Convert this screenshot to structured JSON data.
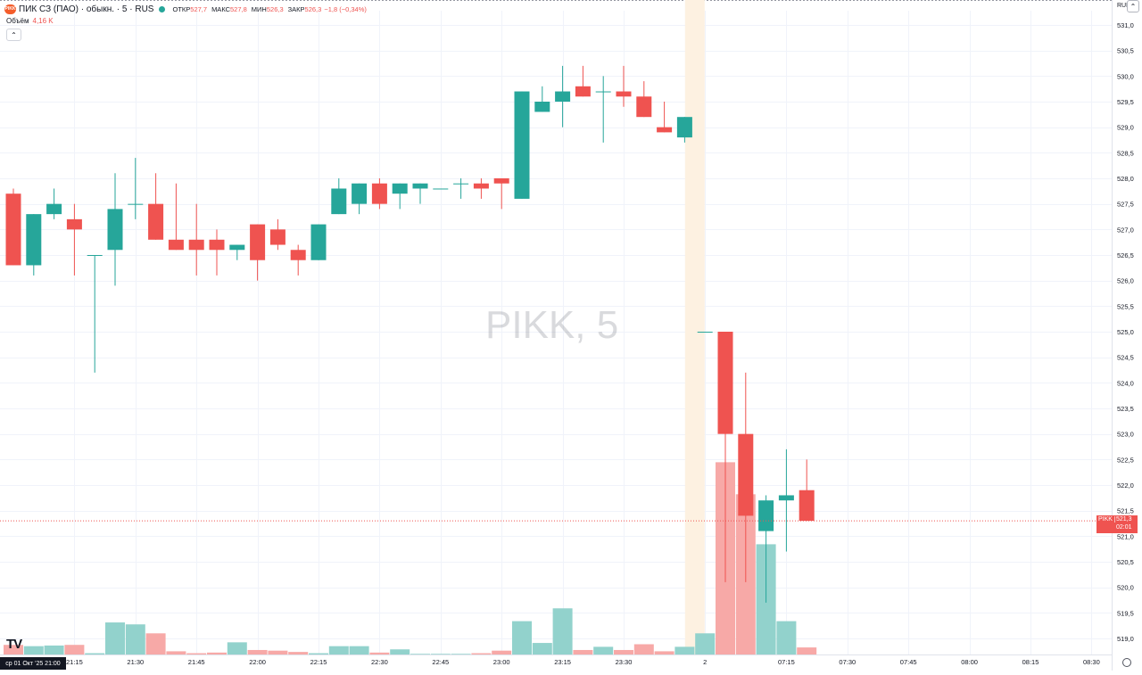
{
  "legend": {
    "logo_text": "PIKK",
    "symbol_name": "ПИК СЗ (ПАО) · обыкн. · 5 · RUS",
    "open_label": "ОТКР",
    "open_value": "527,7",
    "high_label": "МАКС",
    "high_value": "527,8",
    "low_label": "МИН",
    "low_value": "526,3",
    "close_label": "ЗАКР",
    "close_value": "526,3",
    "change_value": "−1,8 (−0,34%)"
  },
  "volume_legend": {
    "label": "Объём",
    "value": "4,16 K"
  },
  "collapse_glyph": "⌃",
  "settings_glyph": "⌃",
  "currency": "RUB",
  "watermark": "PIKK, 5",
  "tv_logo": "TV",
  "date_tag": "ср 01 Окт '25   21:00",
  "price_tag": {
    "symbol": "PIKK",
    "price": "521,3",
    "countdown": "02:01"
  },
  "colors": {
    "up": "#26a69a",
    "down": "#ef5350",
    "up_volume": "#92d2cc",
    "down_volume": "#f7a9a7",
    "session_break": "#fdf1e1"
  },
  "chart_data": {
    "type": "candlestick",
    "symbol": "PIKK",
    "interval": "5",
    "ylim": [
      518.8,
      531.3
    ],
    "y_ticks": [
      "531,0",
      "530,5",
      "530,0",
      "529,5",
      "529,0",
      "528,5",
      "528,0",
      "527,5",
      "527,0",
      "526,5",
      "526,0",
      "525,5",
      "525,0",
      "524,5",
      "524,0",
      "523,5",
      "523,0",
      "522,5",
      "522,0",
      "521,5",
      "521,0",
      "520,5",
      "520,0",
      "519,5",
      "519,0"
    ],
    "x_ticks": [
      {
        "label": "21:15",
        "slot": 3
      },
      {
        "label": "21:30",
        "slot": 6
      },
      {
        "label": "21:45",
        "slot": 9
      },
      {
        "label": "22:00",
        "slot": 12
      },
      {
        "label": "22:15",
        "slot": 15
      },
      {
        "label": "22:30",
        "slot": 18
      },
      {
        "label": "22:45",
        "slot": 21
      },
      {
        "label": "23:00",
        "slot": 24
      },
      {
        "label": "23:15",
        "slot": 27
      },
      {
        "label": "23:30",
        "slot": 30
      },
      {
        "label": "2",
        "slot": 34
      },
      {
        "label": "07:15",
        "slot": 38
      },
      {
        "label": "07:30",
        "slot": 41
      },
      {
        "label": "07:45",
        "slot": 44
      },
      {
        "label": "08:00",
        "slot": 47
      },
      {
        "label": "08:15",
        "slot": 50
      },
      {
        "label": "08:30",
        "slot": 53
      }
    ],
    "session_break_slot": 33.5,
    "last_price": 521.3,
    "candles": [
      {
        "t": "21:00",
        "o": 527.7,
        "h": 527.8,
        "l": 526.3,
        "c": 526.3
      },
      {
        "t": "21:05",
        "o": 526.3,
        "h": 527.3,
        "l": 526.1,
        "c": 527.3
      },
      {
        "t": "21:10",
        "o": 527.3,
        "h": 527.8,
        "l": 527.2,
        "c": 527.5
      },
      {
        "t": "21:15",
        "o": 527.2,
        "h": 527.5,
        "l": 526.1,
        "c": 527.0
      },
      {
        "t": "21:20",
        "o": 526.5,
        "h": 526.5,
        "l": 524.2,
        "c": 526.5
      },
      {
        "t": "21:25",
        "o": 526.6,
        "h": 528.1,
        "l": 525.9,
        "c": 527.4
      },
      {
        "t": "21:30",
        "o": 527.5,
        "h": 528.4,
        "l": 527.2,
        "c": 527.5
      },
      {
        "t": "21:35",
        "o": 527.5,
        "h": 528.1,
        "l": 526.8,
        "c": 526.8
      },
      {
        "t": "21:40",
        "o": 526.8,
        "h": 527.9,
        "l": 526.6,
        "c": 526.6
      },
      {
        "t": "21:45",
        "o": 526.8,
        "h": 527.5,
        "l": 526.1,
        "c": 526.6
      },
      {
        "t": "21:50",
        "o": 526.8,
        "h": 527.0,
        "l": 526.1,
        "c": 526.6
      },
      {
        "t": "21:55",
        "o": 526.6,
        "h": 526.7,
        "l": 526.4,
        "c": 526.7
      },
      {
        "t": "22:00",
        "o": 527.1,
        "h": 527.1,
        "l": 526.0,
        "c": 526.4
      },
      {
        "t": "22:05",
        "o": 527.0,
        "h": 527.2,
        "l": 526.6,
        "c": 526.7
      },
      {
        "t": "22:10",
        "o": 526.6,
        "h": 526.7,
        "l": 526.1,
        "c": 526.4
      },
      {
        "t": "22:15",
        "o": 526.4,
        "h": 527.1,
        "l": 526.4,
        "c": 527.1
      },
      {
        "t": "22:20",
        "o": 527.3,
        "h": 528.0,
        "l": 527.3,
        "c": 527.8
      },
      {
        "t": "22:25",
        "o": 527.5,
        "h": 527.9,
        "l": 527.3,
        "c": 527.9
      },
      {
        "t": "22:30",
        "o": 527.9,
        "h": 528.0,
        "l": 527.4,
        "c": 527.5
      },
      {
        "t": "22:35",
        "o": 527.7,
        "h": 527.9,
        "l": 527.4,
        "c": 527.9
      },
      {
        "t": "22:40",
        "o": 527.8,
        "h": 527.9,
        "l": 527.5,
        "c": 527.9
      },
      {
        "t": "22:45",
        "o": 527.8,
        "h": 527.8,
        "l": 527.8,
        "c": 527.8
      },
      {
        "t": "22:50",
        "o": 527.9,
        "h": 528.0,
        "l": 527.6,
        "c": 527.9
      },
      {
        "t": "22:55",
        "o": 527.9,
        "h": 528.0,
        "l": 527.6,
        "c": 527.8
      },
      {
        "t": "23:00",
        "o": 528.0,
        "h": 528.0,
        "l": 527.4,
        "c": 527.9
      },
      {
        "t": "23:05",
        "o": 527.6,
        "h": 529.7,
        "l": 527.6,
        "c": 529.7
      },
      {
        "t": "23:10",
        "o": 529.3,
        "h": 529.8,
        "l": 529.3,
        "c": 529.5
      },
      {
        "t": "23:15",
        "o": 529.5,
        "h": 530.2,
        "l": 529.0,
        "c": 529.7
      },
      {
        "t": "23:20",
        "o": 529.8,
        "h": 530.2,
        "l": 529.6,
        "c": 529.6
      },
      {
        "t": "23:25",
        "o": 529.7,
        "h": 530.0,
        "l": 528.7,
        "c": 529.7
      },
      {
        "t": "23:30",
        "o": 529.7,
        "h": 530.2,
        "l": 529.4,
        "c": 529.6
      },
      {
        "t": "23:35",
        "o": 529.6,
        "h": 529.9,
        "l": 529.2,
        "c": 529.2
      },
      {
        "t": "23:40",
        "o": 529.0,
        "h": 529.5,
        "l": 528.9,
        "c": 528.9
      },
      {
        "t": "23:45",
        "o": 528.8,
        "h": 529.2,
        "l": 528.7,
        "c": 529.2
      },
      {
        "t": "07:00",
        "o": 525.0,
        "h": 525.0,
        "l": 525.0,
        "c": 525.0
      },
      {
        "t": "07:05",
        "o": 525.0,
        "h": 525.0,
        "l": 520.1,
        "c": 523.0
      },
      {
        "t": "07:10",
        "o": 523.0,
        "h": 524.2,
        "l": 520.1,
        "c": 521.4
      },
      {
        "t": "07:15",
        "o": 521.1,
        "h": 521.8,
        "l": 519.7,
        "c": 521.7
      },
      {
        "t": "07:20",
        "o": 521.7,
        "h": 522.7,
        "l": 520.7,
        "c": 521.8
      },
      {
        "t": "07:25",
        "o": 521.9,
        "h": 522.5,
        "l": 521.3,
        "c": 521.3
      }
    ],
    "volumes": [
      0.15,
      0.13,
      0.14,
      0.15,
      0.02,
      0.5,
      0.47,
      0.33,
      0.05,
      0.02,
      0.03,
      0.19,
      0.07,
      0.06,
      0.04,
      0.02,
      0.13,
      0.13,
      0.03,
      0.08,
      0.01,
      0.01,
      0.01,
      0.02,
      0.06,
      0.52,
      0.18,
      0.72,
      0.07,
      0.12,
      0.07,
      0.16,
      0.05,
      0.12,
      0.33,
      3.0,
      2.5,
      1.72,
      0.52,
      0.11
    ],
    "volume_max": 3.2
  }
}
